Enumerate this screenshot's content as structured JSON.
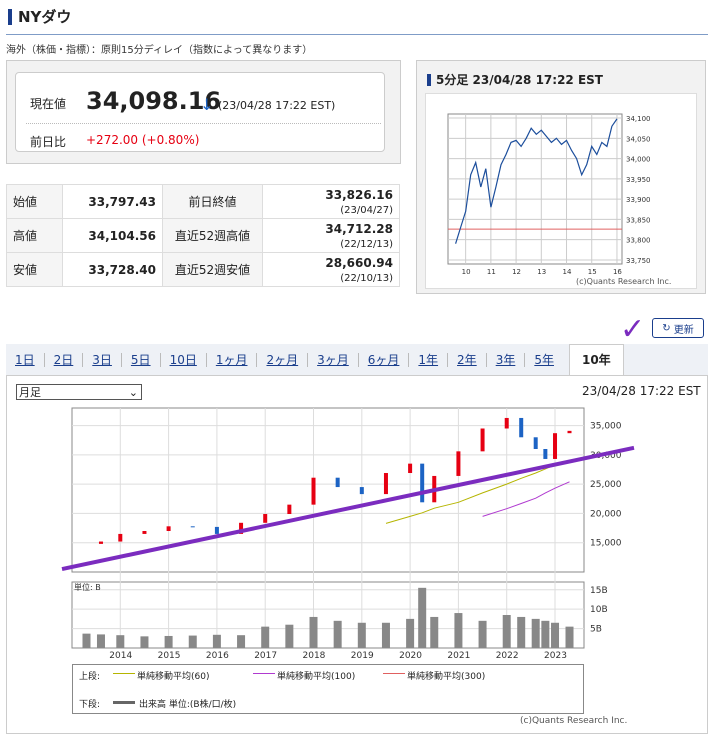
{
  "header": {
    "title": "NYダウ",
    "note": "海外（株価・指標）：原則15分ディレイ（指数によって異なります）"
  },
  "price": {
    "label": "現在値",
    "value": "34,098.16",
    "arrow": "↓",
    "time": "(23/04/28 17:22 EST)",
    "change_label": "前日比",
    "change": "+272.00 (+0.80%)"
  },
  "stats": [
    {
      "k1": "始値",
      "v1": "33,797.43",
      "k2": "前日終値",
      "v2": "33,826.16",
      "d2": "(23/04/27)"
    },
    {
      "k1": "高値",
      "v1": "34,104.56",
      "k2": "直近52週高値",
      "v2": "34,712.28",
      "d2": "(22/12/13)"
    },
    {
      "k1": "安値",
      "v1": "33,728.40",
      "k2": "直近52週安値",
      "v2": "28,660.94",
      "d2": "(22/10/13)"
    }
  ],
  "intraday": {
    "title": "5分足 23/04/28 17:22 EST",
    "copyright": "(c)Quants Research Inc.",
    "y_ticks": [
      "34,100",
      "34,050",
      "34,000",
      "33,950",
      "33,900",
      "33,850",
      "33,800",
      "33,750"
    ],
    "x_ticks": [
      "10",
      "11",
      "12",
      "13",
      "14",
      "15",
      "16"
    ],
    "chart_data": {
      "type": "line",
      "x": [
        9.6,
        9.8,
        10.0,
        10.2,
        10.4,
        10.6,
        10.8,
        11.0,
        11.2,
        11.4,
        11.6,
        11.8,
        12.0,
        12.2,
        12.4,
        12.6,
        12.8,
        13.0,
        13.2,
        13.4,
        13.6,
        13.8,
        14.0,
        14.2,
        14.4,
        14.6,
        14.8,
        15.0,
        15.2,
        15.4,
        15.6,
        15.8,
        16.0
      ],
      "values": [
        33790,
        33830,
        33870,
        33960,
        33990,
        33930,
        33975,
        33880,
        33930,
        33985,
        34010,
        34040,
        34045,
        34030,
        34050,
        34075,
        34060,
        34070,
        34055,
        34040,
        34050,
        34035,
        34045,
        34020,
        34000,
        33960,
        33985,
        34030,
        34010,
        34040,
        34030,
        34080,
        34098
      ],
      "prev_close": 33826.16,
      "ylim": [
        33740,
        34110
      ],
      "xlim": [
        9.3,
        16.2
      ]
    }
  },
  "update_label": "更新",
  "tabs": [
    "1日",
    "2日",
    "3日",
    "5日",
    "10日",
    "1ヶ月",
    "2ヶ月",
    "3ヶ月",
    "6ヶ月",
    "1年",
    "2年",
    "3年",
    "5年",
    "10年"
  ],
  "period_select": "月足",
  "big_time": "23/04/28 17:22 EST",
  "big_chart": {
    "y_ticks": [
      "35,000",
      "30,000",
      "25,000",
      "20,000",
      "15,000"
    ],
    "vol_ticks": [
      "15B",
      "10B",
      "5B"
    ],
    "vol_unit": "単位: B",
    "x_ticks": [
      "2014",
      "2015",
      "2016",
      "2017",
      "2018",
      "2019",
      "2020",
      "2021",
      "2022",
      "2023"
    ],
    "chart_data": {
      "type": "line",
      "x_years": [
        2013.3,
        2013.6,
        2014.0,
        2014.5,
        2015.0,
        2015.5,
        2016.0,
        2016.5,
        2017.0,
        2017.5,
        2018.0,
        2018.5,
        2019.0,
        2019.5,
        2020.0,
        2020.25,
        2020.5,
        2021.0,
        2021.5,
        2022.0,
        2022.3,
        2022.6,
        2022.8,
        2023.0,
        2023.3
      ],
      "close": [
        14800,
        15200,
        16500,
        17000,
        17800,
        17700,
        16500,
        18400,
        19900,
        21500,
        26100,
        24500,
        23300,
        26900,
        28500,
        21900,
        26400,
        30600,
        34500,
        36300,
        33000,
        31000,
        29300,
        33700,
        34098
      ],
      "ma60": [
        null,
        null,
        null,
        null,
        null,
        null,
        null,
        null,
        null,
        null,
        null,
        null,
        null,
        18300,
        19500,
        20100,
        20900,
        21900,
        23500,
        25000,
        26000,
        26900,
        27600,
        28300,
        29000
      ],
      "ma100": [
        null,
        null,
        null,
        null,
        null,
        null,
        null,
        null,
        null,
        null,
        null,
        null,
        null,
        null,
        null,
        null,
        null,
        null,
        19500,
        20800,
        21700,
        22600,
        23500,
        24300,
        25400
      ],
      "volume_b": [
        3.7,
        3.5,
        3.3,
        3.0,
        3.1,
        3.2,
        3.4,
        3.3,
        5.5,
        6.0,
        8.0,
        7.0,
        6.5,
        6.5,
        7.5,
        15.5,
        8.0,
        9.0,
        7.0,
        8.5,
        8.0,
        7.5,
        7.0,
        6.5,
        5.5
      ],
      "ylim": [
        10000,
        38000
      ],
      "xlim": [
        2013.0,
        2023.6
      ]
    },
    "legend": {
      "upper": "上段:",
      "ma60": "単純移動平均(60)",
      "ma100": "単純移動平均(100)",
      "ma300": "単純移動平均(300)",
      "lower": "下段:",
      "vol": "出来高 単位:(B株/口/枚)"
    },
    "copyright": "(c)Quants Research Inc."
  },
  "colors": {
    "accent": "#1a3e8c",
    "up": "#e60012",
    "down": "#1c63c4",
    "ma60": "#b5b500",
    "ma100": "#b03ad0",
    "ma300": "#e06060",
    "trend": "#7b2cbf"
  }
}
